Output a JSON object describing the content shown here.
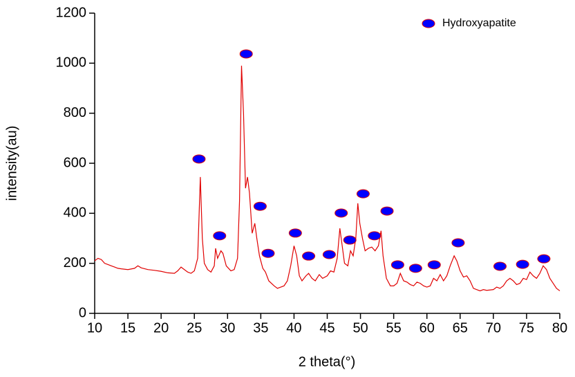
{
  "chart_data": {
    "type": "line",
    "x_label": "2 theta(°)",
    "y_label": "intensity(au)",
    "xlim": [
      10,
      80
    ],
    "ylim": [
      0,
      1200
    ],
    "xticks": [
      10,
      15,
      20,
      25,
      30,
      35,
      40,
      45,
      50,
      55,
      60,
      65,
      70,
      75,
      80
    ],
    "yticks": [
      0,
      200,
      400,
      600,
      800,
      1000,
      1200
    ],
    "legend_position": "top-right",
    "series": [
      {
        "color": "#e00000",
        "style": "line",
        "x": [
          10,
          10.5,
          11,
          11.5,
          12,
          12.5,
          13,
          13.5,
          14,
          15,
          16,
          16.5,
          17,
          18,
          19,
          20,
          21,
          22,
          22.5,
          23,
          23.5,
          24,
          24.5,
          25,
          25.5,
          25.9,
          26.2,
          26.5,
          27,
          27.5,
          28,
          28.2,
          28.5,
          29,
          29.3,
          29.8,
          30.5,
          31,
          31.5,
          31.8,
          32.1,
          32.4,
          32.7,
          33,
          33.3,
          33.7,
          34.1,
          34.4,
          34.8,
          35.3,
          35.7,
          36.2,
          37,
          37.5,
          38,
          38.5,
          39,
          39.5,
          40,
          40.4,
          40.8,
          41.2,
          41.8,
          42.2,
          42.7,
          43.2,
          43.8,
          44.3,
          45,
          45.5,
          46,
          46.5,
          46.9,
          47.2,
          47.6,
          48.1,
          48.5,
          48.9,
          49.3,
          49.6,
          49.9,
          50.3,
          50.7,
          51.2,
          51.7,
          52.2,
          52.7,
          53.1,
          53.4,
          53.9,
          54.5,
          55,
          55.5,
          56,
          56.5,
          57,
          57.5,
          58,
          58.5,
          59,
          59.5,
          60,
          60.5,
          61,
          61.5,
          62,
          62.5,
          63,
          63.5,
          64.1,
          64.5,
          65,
          65.5,
          66,
          66.5,
          67,
          67.5,
          68,
          68.5,
          69,
          70,
          70.5,
          71,
          71.5,
          72,
          72.5,
          73,
          73.5,
          74,
          74.5,
          75,
          75.5,
          76,
          76.5,
          77,
          77.5,
          78,
          78.5,
          79,
          79.5,
          80
        ],
        "values": [
          210,
          220,
          215,
          200,
          195,
          190,
          185,
          180,
          178,
          175,
          180,
          190,
          182,
          175,
          172,
          168,
          162,
          160,
          170,
          185,
          175,
          165,
          160,
          170,
          220,
          545,
          300,
          200,
          175,
          165,
          190,
          260,
          220,
          250,
          240,
          190,
          170,
          175,
          220,
          450,
          990,
          800,
          500,
          545,
          480,
          320,
          360,
          300,
          230,
          180,
          165,
          130,
          110,
          100,
          105,
          110,
          130,
          190,
          270,
          230,
          150,
          130,
          150,
          160,
          140,
          130,
          155,
          140,
          150,
          170,
          165,
          220,
          340,
          280,
          200,
          190,
          250,
          230,
          300,
          440,
          360,
          300,
          250,
          260,
          265,
          250,
          270,
          330,
          230,
          140,
          110,
          110,
          120,
          160,
          130,
          125,
          115,
          110,
          125,
          120,
          110,
          105,
          110,
          140,
          130,
          155,
          130,
          150,
          190,
          230,
          210,
          170,
          145,
          150,
          130,
          100,
          95,
          90,
          95,
          92,
          95,
          105,
          100,
          110,
          130,
          140,
          130,
          115,
          120,
          140,
          135,
          165,
          150,
          140,
          160,
          190,
          175,
          140,
          120,
          100,
          90
        ]
      },
      {
        "name": "Hydroxyapatite",
        "color": "#0000ff",
        "style": "marker",
        "x": [
          25.7,
          28.8,
          32.8,
          34.9,
          36.1,
          40.2,
          42.2,
          45.3,
          47.1,
          48.4,
          50.4,
          52.1,
          54.0,
          55.6,
          58.3,
          61.1,
          64.7,
          71.0,
          74.4,
          77.6
        ],
        "values": [
          617,
          310,
          1037,
          428,
          240,
          321,
          229,
          235,
          401,
          293,
          478,
          310,
          409,
          194,
          180,
          194,
          282,
          188,
          196,
          218
        ]
      }
    ]
  }
}
